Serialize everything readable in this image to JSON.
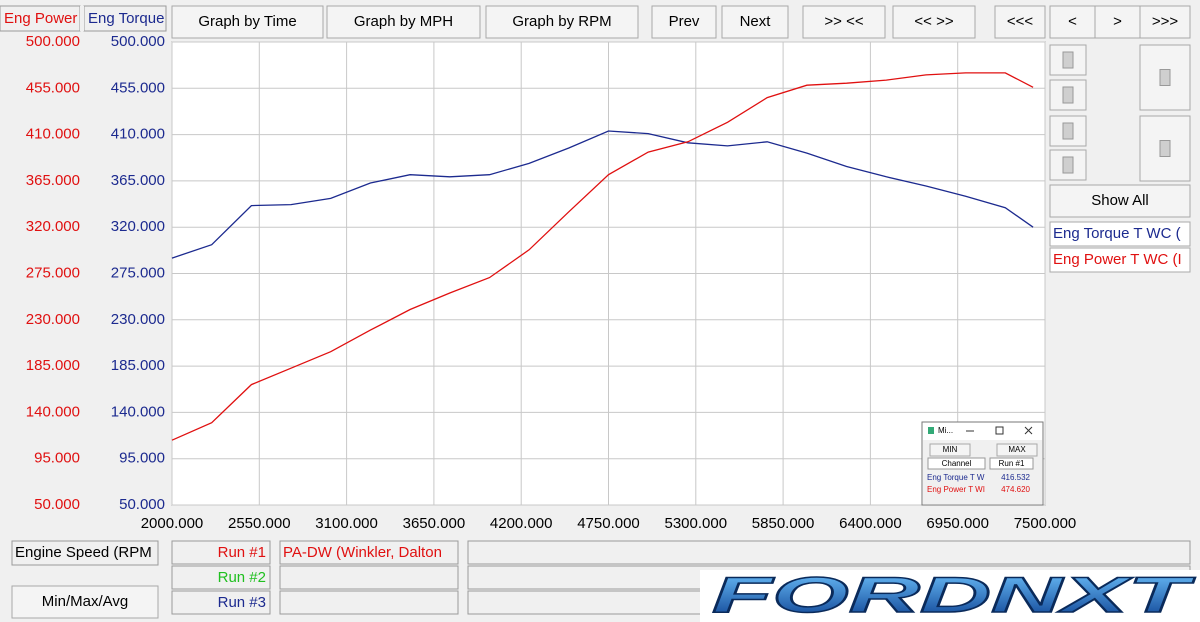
{
  "ui": {
    "toolbar": [
      "Graph by Time",
      "Graph by MPH",
      "Graph by RPM",
      "Prev",
      "Next",
      ">> <<",
      "<< >>",
      "<<<",
      "<",
      ">",
      ">>>"
    ],
    "show_all": "Show All",
    "runs": [
      "Run #1",
      "Run #2",
      "Run #3"
    ],
    "run_file": "PA-DW (Winkler, Dalton",
    "min_max_button": "Min/Max/Avg",
    "logo": "FORDNXT",
    "popup": {
      "title": "Mi...",
      "buttons": [
        "MIN",
        "MAX"
      ],
      "headers": [
        "Channel",
        "Run #1"
      ],
      "rows": [
        [
          "Eng Torque T W",
          "416.532"
        ],
        [
          "Eng Power T WI",
          "474.620"
        ]
      ]
    }
  },
  "chart_data": {
    "type": "line",
    "x_label": "Engine Speed (RPM",
    "y_label": "Eng Power",
    "y2_label": "Eng Torque",
    "x": [
      2000,
      2250,
      2500,
      2750,
      3000,
      3250,
      3500,
      3750,
      4000,
      4250,
      4500,
      4750,
      5000,
      5250,
      5500,
      5750,
      6000,
      6250,
      6500,
      6750,
      7000,
      7250,
      7425
    ],
    "series": [
      {
        "name": "Eng Torque T WC (",
        "color": "#1c2a8f",
        "axis": "y2",
        "values": [
          290,
          303,
          341,
          342,
          348,
          363,
          371,
          369,
          371,
          382,
          397,
          413.5,
          411,
          402,
          399,
          403,
          392,
          379,
          369,
          360,
          350,
          339,
          320
        ]
      },
      {
        "name": "Eng Power T WC (I",
        "color": "#e01010",
        "values": [
          113,
          130,
          167,
          183,
          199,
          220,
          240,
          256,
          271,
          298,
          335,
          371,
          393,
          403,
          422,
          446,
          458,
          460,
          463,
          468,
          470,
          470,
          456
        ]
      }
    ],
    "xlim": [
      2000,
      7500
    ],
    "xticks": [
      {
        "value": 2000,
        "label": "2000.000"
      },
      {
        "value": 2550,
        "label": "2550.000"
      },
      {
        "value": 3100,
        "label": "3100.000"
      },
      {
        "value": 3650,
        "label": "3650.000"
      },
      {
        "value": 4200,
        "label": "4200.000"
      },
      {
        "value": 4750,
        "label": "4750.000"
      },
      {
        "value": 5300,
        "label": "5300.000"
      },
      {
        "value": 5850,
        "label": "5850.000"
      },
      {
        "value": 6400,
        "label": "6400.000"
      },
      {
        "value": 6950,
        "label": "6950.000"
      },
      {
        "value": 7500,
        "label": "7500.000"
      }
    ],
    "ylim": [
      50,
      500
    ],
    "yticks": [
      {
        "value": 50,
        "label": "50.000"
      },
      {
        "value": 95,
        "label": "95.000"
      },
      {
        "value": 140,
        "label": "140.000"
      },
      {
        "value": 185,
        "label": "185.000"
      },
      {
        "value": 230,
        "label": "230.000"
      },
      {
        "value": 275,
        "label": "275.000"
      },
      {
        "value": 320,
        "label": "320.000"
      },
      {
        "value": 365,
        "label": "365.000"
      },
      {
        "value": 410,
        "label": "410.000"
      },
      {
        "value": 455,
        "label": "455.000"
      },
      {
        "value": 500,
        "label": "500.000"
      }
    ],
    "y2lim": [
      50,
      500
    ],
    "y2ticks": [
      {
        "value": 50,
        "label": "50.000"
      },
      {
        "value": 95,
        "label": "95.000"
      },
      {
        "value": 140,
        "label": "140.000"
      },
      {
        "value": 185,
        "label": "185.000"
      },
      {
        "value": 230,
        "label": "230.000"
      },
      {
        "value": 275,
        "label": "275.000"
      },
      {
        "value": 320,
        "label": "320.000"
      },
      {
        "value": 365,
        "label": "365.000"
      },
      {
        "value": 410,
        "label": "410.000"
      },
      {
        "value": 455,
        "label": "455.000"
      },
      {
        "value": 500,
        "label": "500.000"
      }
    ],
    "y_color": "#e01010",
    "y2_color": "#1c2a8f",
    "grid": true
  }
}
